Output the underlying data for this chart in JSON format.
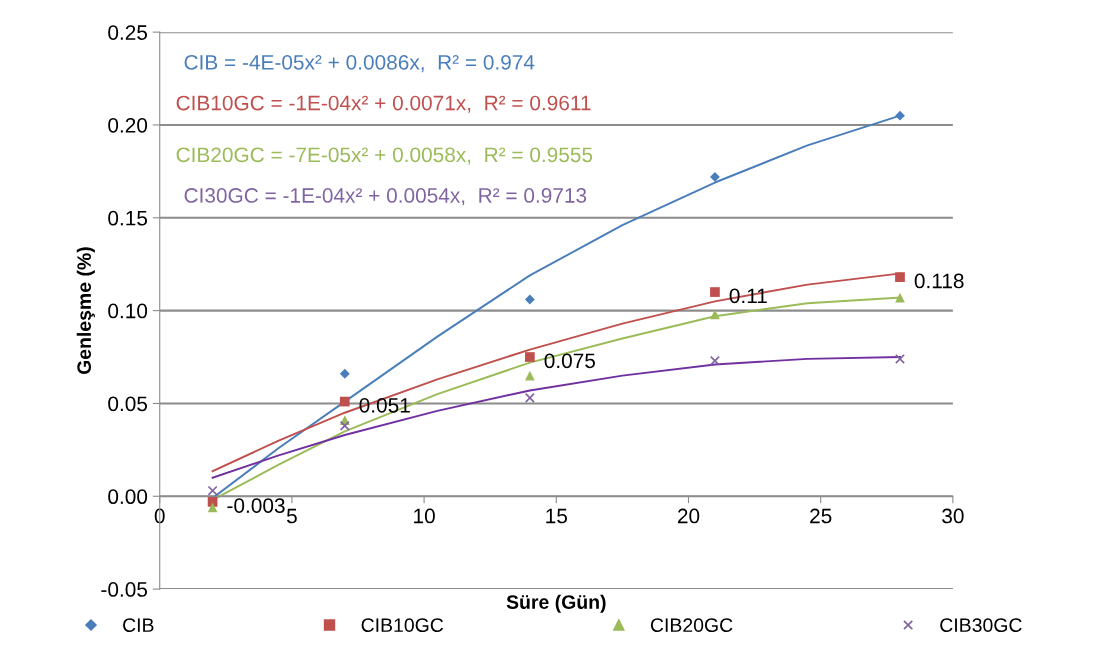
{
  "chart_data": {
    "type": "scatter",
    "xlabel": "Süre (Gün)",
    "ylabel": "Genleşme (%)",
    "xlim": [
      0,
      30
    ],
    "xticks": [
      0,
      5,
      10,
      15,
      20,
      25,
      30
    ],
    "ylim": [
      -0.05,
      0.25
    ],
    "yticks": [
      {
        "value": -0.05,
        "label": "-0.05"
      },
      {
        "value": 0,
        "label": "0.00"
      },
      {
        "value": 0.05,
        "label": "0.05"
      },
      {
        "value": 0.1,
        "label": "0.10"
      },
      {
        "value": 0.15,
        "label": "0.15"
      },
      {
        "value": 0.2,
        "label": "0.20"
      },
      {
        "value": 0.25,
        "label": "0.25"
      }
    ],
    "grid": "y",
    "legend": "bottom",
    "series": [
      {
        "name": "CIB",
        "marker": "diamond",
        "color": "#4a7ebb",
        "x": [
          7,
          14,
          21,
          28
        ],
        "values": [
          0.066,
          0.106,
          0.172,
          0.205
        ]
      },
      {
        "name": "CIB10GC",
        "marker": "square",
        "color": "#c0504d",
        "x": [
          2,
          7,
          14,
          21,
          28
        ],
        "values": [
          -0.003,
          0.051,
          0.075,
          0.11,
          0.118
        ],
        "value_labels": [
          "-0.003",
          "0.051",
          "0.075",
          "0.11",
          "0.118"
        ]
      },
      {
        "name": "CIB20GC",
        "marker": "triangle",
        "color": "#9bbb59",
        "x": [
          2,
          7,
          14,
          21,
          28
        ],
        "values": [
          -0.006,
          0.041,
          0.065,
          0.098,
          0.107
        ]
      },
      {
        "name": "CIB30GC",
        "marker": "cross",
        "color": "#8064a2",
        "x": [
          2,
          7,
          14,
          21,
          28
        ],
        "values": [
          0.003,
          0.038,
          0.053,
          0.073,
          0.074
        ]
      },
      {
        "type": "line",
        "color": "#4a7ebb",
        "x": [
          2,
          4.5,
          7,
          10.5,
          14,
          17.5,
          21,
          24.5,
          28
        ],
        "values": [
          -0.001,
          0.026,
          0.051,
          0.086,
          0.119,
          0.146,
          0.169,
          0.189,
          0.205
        ]
      },
      {
        "type": "line",
        "color": "#c0504d",
        "x": [
          2,
          4.5,
          7,
          10.5,
          14,
          17.5,
          21,
          24.5,
          28
        ],
        "values": [
          0.0135,
          0.03,
          0.045,
          0.063,
          0.079,
          0.093,
          0.105,
          0.114,
          0.12
        ]
      },
      {
        "type": "line",
        "color": "#9bbb59",
        "x": [
          2,
          4.5,
          7,
          10.5,
          14,
          17.5,
          21,
          24.5,
          28
        ],
        "values": [
          -0.002,
          0.017,
          0.035,
          0.055,
          0.072,
          0.085,
          0.097,
          0.104,
          0.107
        ]
      },
      {
        "type": "line",
        "color": "#7030a0",
        "x": [
          2,
          4.5,
          7,
          10.5,
          14,
          17.5,
          21,
          24.5,
          28
        ],
        "values": [
          0.01,
          0.022,
          0.033,
          0.046,
          0.057,
          0.065,
          0.071,
          0.074,
          0.075
        ]
      }
    ],
    "annotations": [
      "CIB = -4E-05x² + 0.0086x,  R² = 0.974",
      "CIB10GC = -1E-04x² + 0.0071x,  R² = 0.9611",
      "CIB20GC = -7E-05x² + 0.0058x,  R² = 0.9555",
      "CI30GC = -1E-04x² + 0.0054x,  R² = 0.9713"
    ]
  }
}
